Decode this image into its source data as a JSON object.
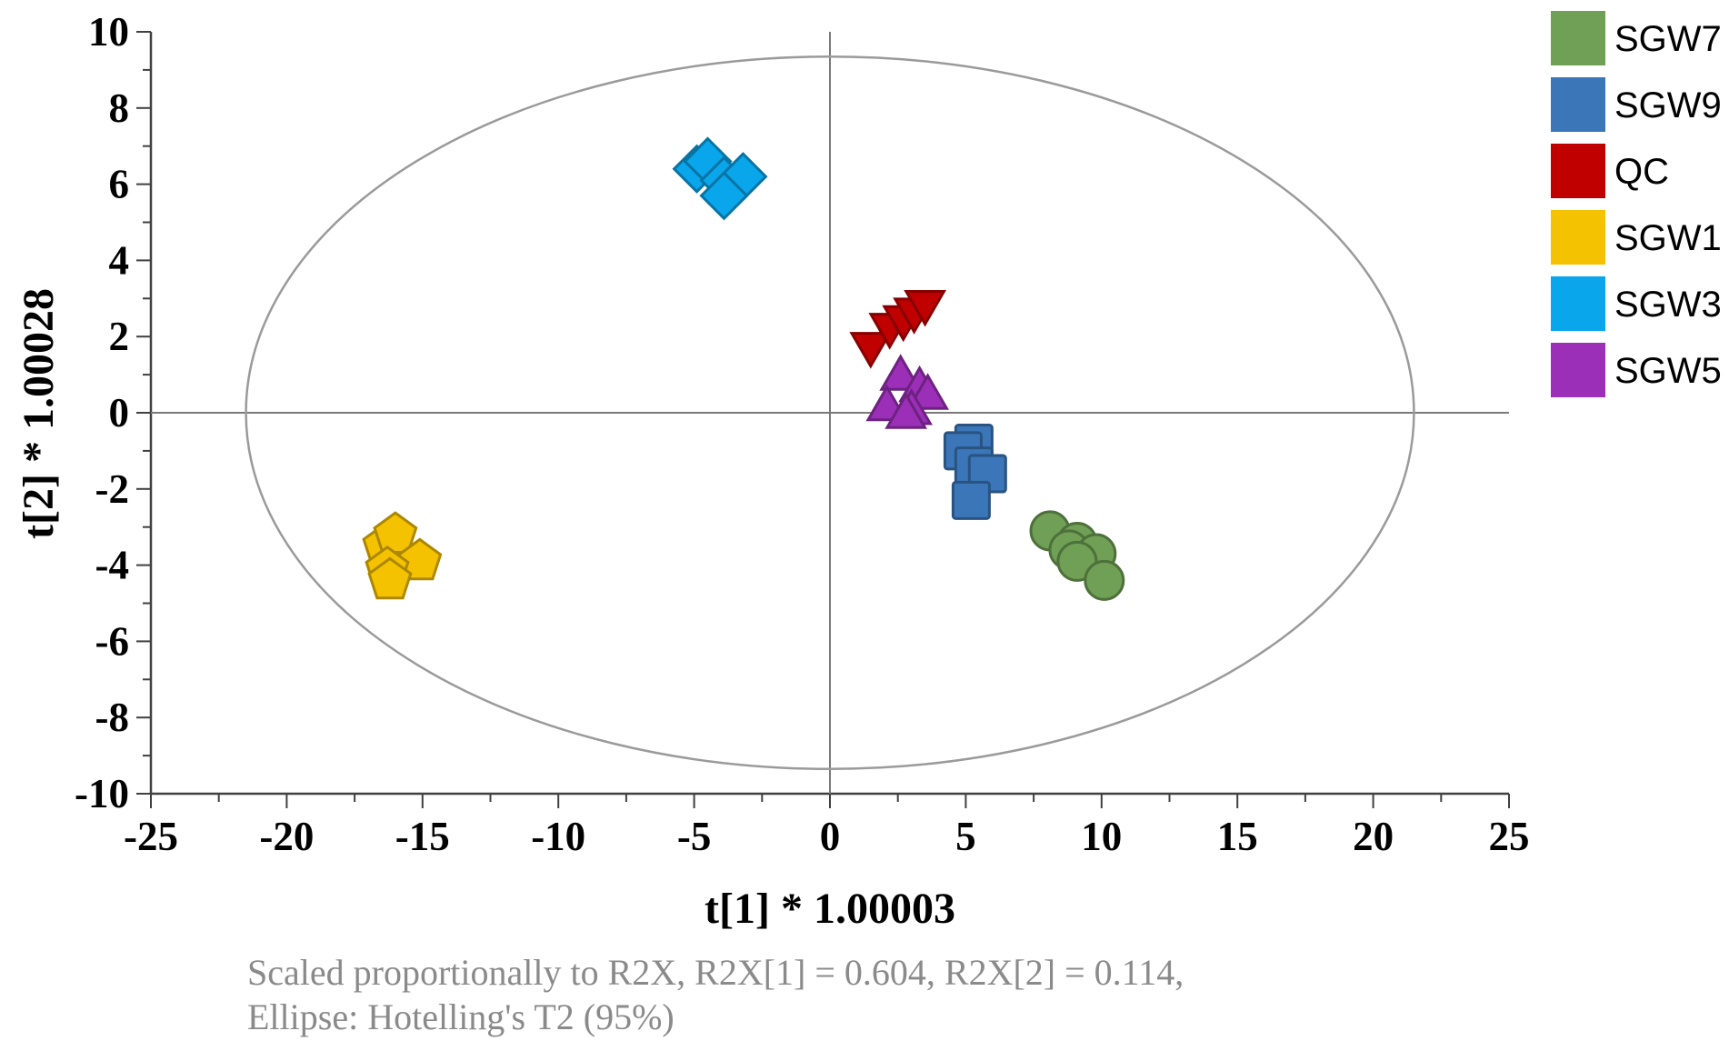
{
  "chart_data": {
    "type": "scatter",
    "xlabel": "t[1] * 1.00003",
    "ylabel": "t[2] * 1.00028",
    "xlim": [
      -25,
      25
    ],
    "ylim": [
      -10,
      10
    ],
    "xticks": [
      -25,
      -20,
      -15,
      -10,
      -5,
      0,
      5,
      10,
      15,
      20,
      25
    ],
    "yticks": [
      -10,
      -8,
      -6,
      -4,
      -2,
      0,
      2,
      4,
      6,
      8,
      10
    ],
    "grid": false,
    "reference_lines": [
      0,
      0
    ],
    "ellipse": {
      "center": [
        0,
        0
      ],
      "semi_axis_x": 21.5,
      "semi_axis_y": 9.35
    },
    "legend_position": "right",
    "footnote": [
      "Scaled proportionally to R2X, R2X[1] = 0.604, R2X[2] = 0.114,",
      "Ellipse: Hotelling's T2 (95%)"
    ],
    "series": [
      {
        "name": "SGW7",
        "color": "#70a055",
        "marker": "circle",
        "points": [
          [
            8.1,
            -3.1
          ],
          [
            9.1,
            -3.4
          ],
          [
            8.8,
            -3.6
          ],
          [
            9.8,
            -3.7
          ],
          [
            9.1,
            -3.9
          ],
          [
            10.1,
            -4.4
          ]
        ]
      },
      {
        "name": "SGW9",
        "color": "#3a76b8",
        "marker": "square",
        "points": [
          [
            5.3,
            -0.8
          ],
          [
            4.9,
            -1.0
          ],
          [
            5.3,
            -1.4
          ],
          [
            5.8,
            -1.6
          ],
          [
            5.2,
            -2.3
          ]
        ]
      },
      {
        "name": "QC",
        "color": "#c00000",
        "marker": "triangle-down",
        "points": [
          [
            1.5,
            1.8
          ],
          [
            2.2,
            2.3
          ],
          [
            2.7,
            2.5
          ],
          [
            3.1,
            2.7
          ],
          [
            3.5,
            2.9
          ]
        ]
      },
      {
        "name": "SGW1",
        "color": "#f5c200",
        "marker": "pentagon",
        "points": [
          [
            -16.4,
            -3.5
          ],
          [
            -16.0,
            -3.2
          ],
          [
            -15.1,
            -3.9
          ],
          [
            -16.3,
            -4.1
          ],
          [
            -16.2,
            -4.4
          ]
        ]
      },
      {
        "name": "SGW3",
        "color": "#0aa6eb",
        "marker": "diamond",
        "points": [
          [
            -4.9,
            6.4
          ],
          [
            -4.5,
            6.6
          ],
          [
            -3.9,
            6.1
          ],
          [
            -3.2,
            6.2
          ],
          [
            -3.9,
            5.7
          ]
        ]
      },
      {
        "name": "SGW5",
        "color": "#9c2fb8",
        "marker": "triangle-up",
        "points": [
          [
            2.6,
            0.9
          ],
          [
            3.3,
            0.6
          ],
          [
            3.6,
            0.4
          ],
          [
            2.1,
            0.1
          ],
          [
            3.0,
            0.0
          ],
          [
            2.8,
            -0.1
          ]
        ]
      }
    ]
  }
}
